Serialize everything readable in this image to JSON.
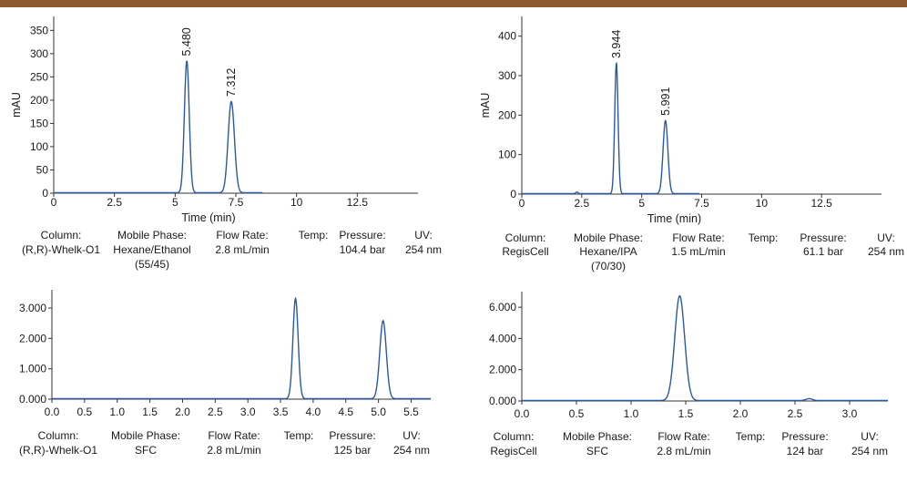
{
  "chart_data": [
    {
      "type": "line",
      "xlabel": "Time (min)",
      "ylabel": "mAU",
      "xlim": [
        0,
        15
      ],
      "ylim": [
        0,
        380
      ],
      "xticks": [
        0,
        2.5,
        5,
        7.5,
        10,
        12.5
      ],
      "xtick_labels": [
        "0",
        "2.5",
        "5",
        "7.5",
        "10",
        "12.5"
      ],
      "yticks": [
        0,
        50,
        100,
        150,
        200,
        250,
        300,
        350
      ],
      "ytick_labels": [
        "0",
        "50",
        "100",
        "150",
        "200",
        "250",
        "300",
        "350"
      ],
      "line_end": 8.6,
      "peaks": [
        {
          "x": 5.48,
          "y": 283,
          "w": 0.1,
          "label": "5.480"
        },
        {
          "x": 7.312,
          "y": 196,
          "w": 0.13,
          "label": "7.312"
        }
      ],
      "conditions": [
        {
          "header": "Column:",
          "value": "(R,R)-Whelk-O1"
        },
        {
          "header": "Mobile Phase:",
          "value": "Hexane/Ethanol",
          "value2": "(55/45)"
        },
        {
          "header": "Flow Rate:",
          "value": "2.8 mL/min"
        },
        {
          "header": "Temp:",
          "value": ""
        },
        {
          "header": "Pressure:",
          "value": "104.4 bar"
        },
        {
          "header": "UV:",
          "value": "254 nm"
        }
      ]
    },
    {
      "type": "line",
      "xlabel": "Time (min)",
      "ylabel": "mAU",
      "xlim": [
        0,
        15
      ],
      "ylim": [
        0,
        450
      ],
      "xticks": [
        0,
        2.5,
        5,
        7.5,
        10,
        12.5
      ],
      "xtick_labels": [
        "0",
        "2.5",
        "5",
        "7.5",
        "10",
        "12.5"
      ],
      "yticks": [
        0,
        100,
        200,
        300,
        400
      ],
      "ytick_labels": [
        "0",
        "100",
        "200",
        "300",
        "400"
      ],
      "line_end": 7.4,
      "peaks": [
        {
          "x": 3.944,
          "y": 330,
          "w": 0.07,
          "label": "3.944"
        },
        {
          "x": 5.991,
          "y": 185,
          "w": 0.1,
          "label": "5.991"
        },
        {
          "x": 2.3,
          "y": 4,
          "w": 0.05,
          "label": ""
        }
      ],
      "conditions": [
        {
          "header": "Column:",
          "value": "RegisCell"
        },
        {
          "header": "Mobile Phase:",
          "value": "Hexane/IPA",
          "value2": "(70/30)"
        },
        {
          "header": "Flow Rate:",
          "value": "1.5 mL/min"
        },
        {
          "header": "Temp:",
          "value": ""
        },
        {
          "header": "Pressure:",
          "value": "61.1 bar"
        },
        {
          "header": "UV:",
          "value": "254 nm"
        }
      ]
    },
    {
      "type": "line",
      "xlabel": "",
      "ylabel": "",
      "xlim": [
        0,
        5.8
      ],
      "ylim": [
        0,
        3.6
      ],
      "xticks": [
        0,
        0.5,
        1,
        1.5,
        2,
        2.5,
        3,
        3.5,
        4,
        4.5,
        5,
        5.5
      ],
      "xtick_labels": [
        "0.0",
        "0.5",
        "1.0",
        "1.5",
        "2.0",
        "2.5",
        "3.0",
        "3.5",
        "4.0",
        "4.5",
        "5.0",
        "5.5"
      ],
      "yticks": [
        0,
        1,
        2,
        3
      ],
      "ytick_labels": [
        "0.000",
        "1.000",
        "2.000",
        "3.000"
      ],
      "line_end": 5.8,
      "peaks": [
        {
          "x": 3.73,
          "y": 3.3,
          "w": 0.04,
          "label": ""
        },
        {
          "x": 5.07,
          "y": 2.57,
          "w": 0.05,
          "label": ""
        }
      ],
      "conditions": [
        {
          "header": "Column:",
          "value": "(R,R)-Whelk-O1"
        },
        {
          "header": "Mobile Phase:",
          "value": "SFC"
        },
        {
          "header": "Flow Rate:",
          "value": "2.8 mL/min"
        },
        {
          "header": "Temp:",
          "value": ""
        },
        {
          "header": "Pressure:",
          "value": "125 bar"
        },
        {
          "header": "UV:",
          "value": "254 nm"
        }
      ]
    },
    {
      "type": "line",
      "xlabel": "",
      "ylabel": "",
      "xlim": [
        0,
        3.35
      ],
      "ylim": [
        0,
        7.0
      ],
      "xticks": [
        0,
        0.5,
        1,
        1.5,
        2,
        2.5,
        3
      ],
      "xtick_labels": [
        "0.0",
        "0.5",
        "1.0",
        "1.5",
        "2.0",
        "2.5",
        "3.0"
      ],
      "yticks": [
        0,
        2,
        4,
        6
      ],
      "ytick_labels": [
        "0.000",
        "2.000",
        "4.000",
        "6.000"
      ],
      "line_end": 3.35,
      "peaks": [
        {
          "x": 1.445,
          "y": 6.7,
          "w": 0.045,
          "label": ""
        },
        {
          "x": 2.63,
          "y": 0.12,
          "w": 0.03,
          "label": ""
        }
      ],
      "conditions": [
        {
          "header": "Column:",
          "value": "RegisCell"
        },
        {
          "header": "Mobile Phase:",
          "value": "SFC"
        },
        {
          "header": "Flow Rate:",
          "value": "2.8 mL/min"
        },
        {
          "header": "Temp:",
          "value": ""
        },
        {
          "header": "Pressure:",
          "value": "124 bar"
        },
        {
          "header": "UV:",
          "value": "254 nm"
        }
      ]
    }
  ]
}
